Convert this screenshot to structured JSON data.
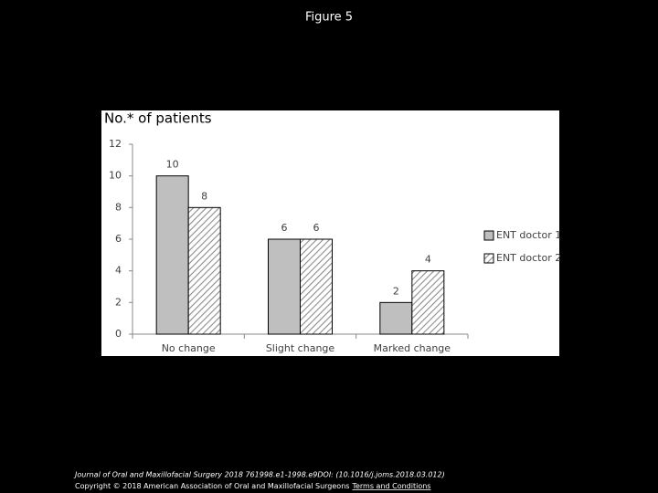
{
  "title": "Figure 5",
  "chart_data": {
    "type": "bar",
    "ylabel": "No.* of patients",
    "categories": [
      "No change",
      "Slight change",
      "Marked change"
    ],
    "series": [
      {
        "name": "ENT doctor 1",
        "color": "#bfbfbf",
        "hatch": false,
        "values": [
          10,
          6,
          2
        ]
      },
      {
        "name": "ENT doctor 2",
        "color": "#8c8c8c",
        "hatch": true,
        "values": [
          8,
          6,
          4
        ]
      }
    ],
    "ylim": [
      0,
      12
    ],
    "yticks": [
      0,
      2,
      4,
      6,
      8,
      10,
      12
    ],
    "grid": false,
    "legend": "right"
  },
  "footer": {
    "citation": "Journal of Oral and Maxillofacial Surgery 2018 761998.e1-1998.e9DOI: (10.1016/j.joms.2018.03.012)",
    "copyright": "Copyright © 2018 American Association of Oral and Maxillofacial Surgeons",
    "link": "Terms and Conditions"
  }
}
